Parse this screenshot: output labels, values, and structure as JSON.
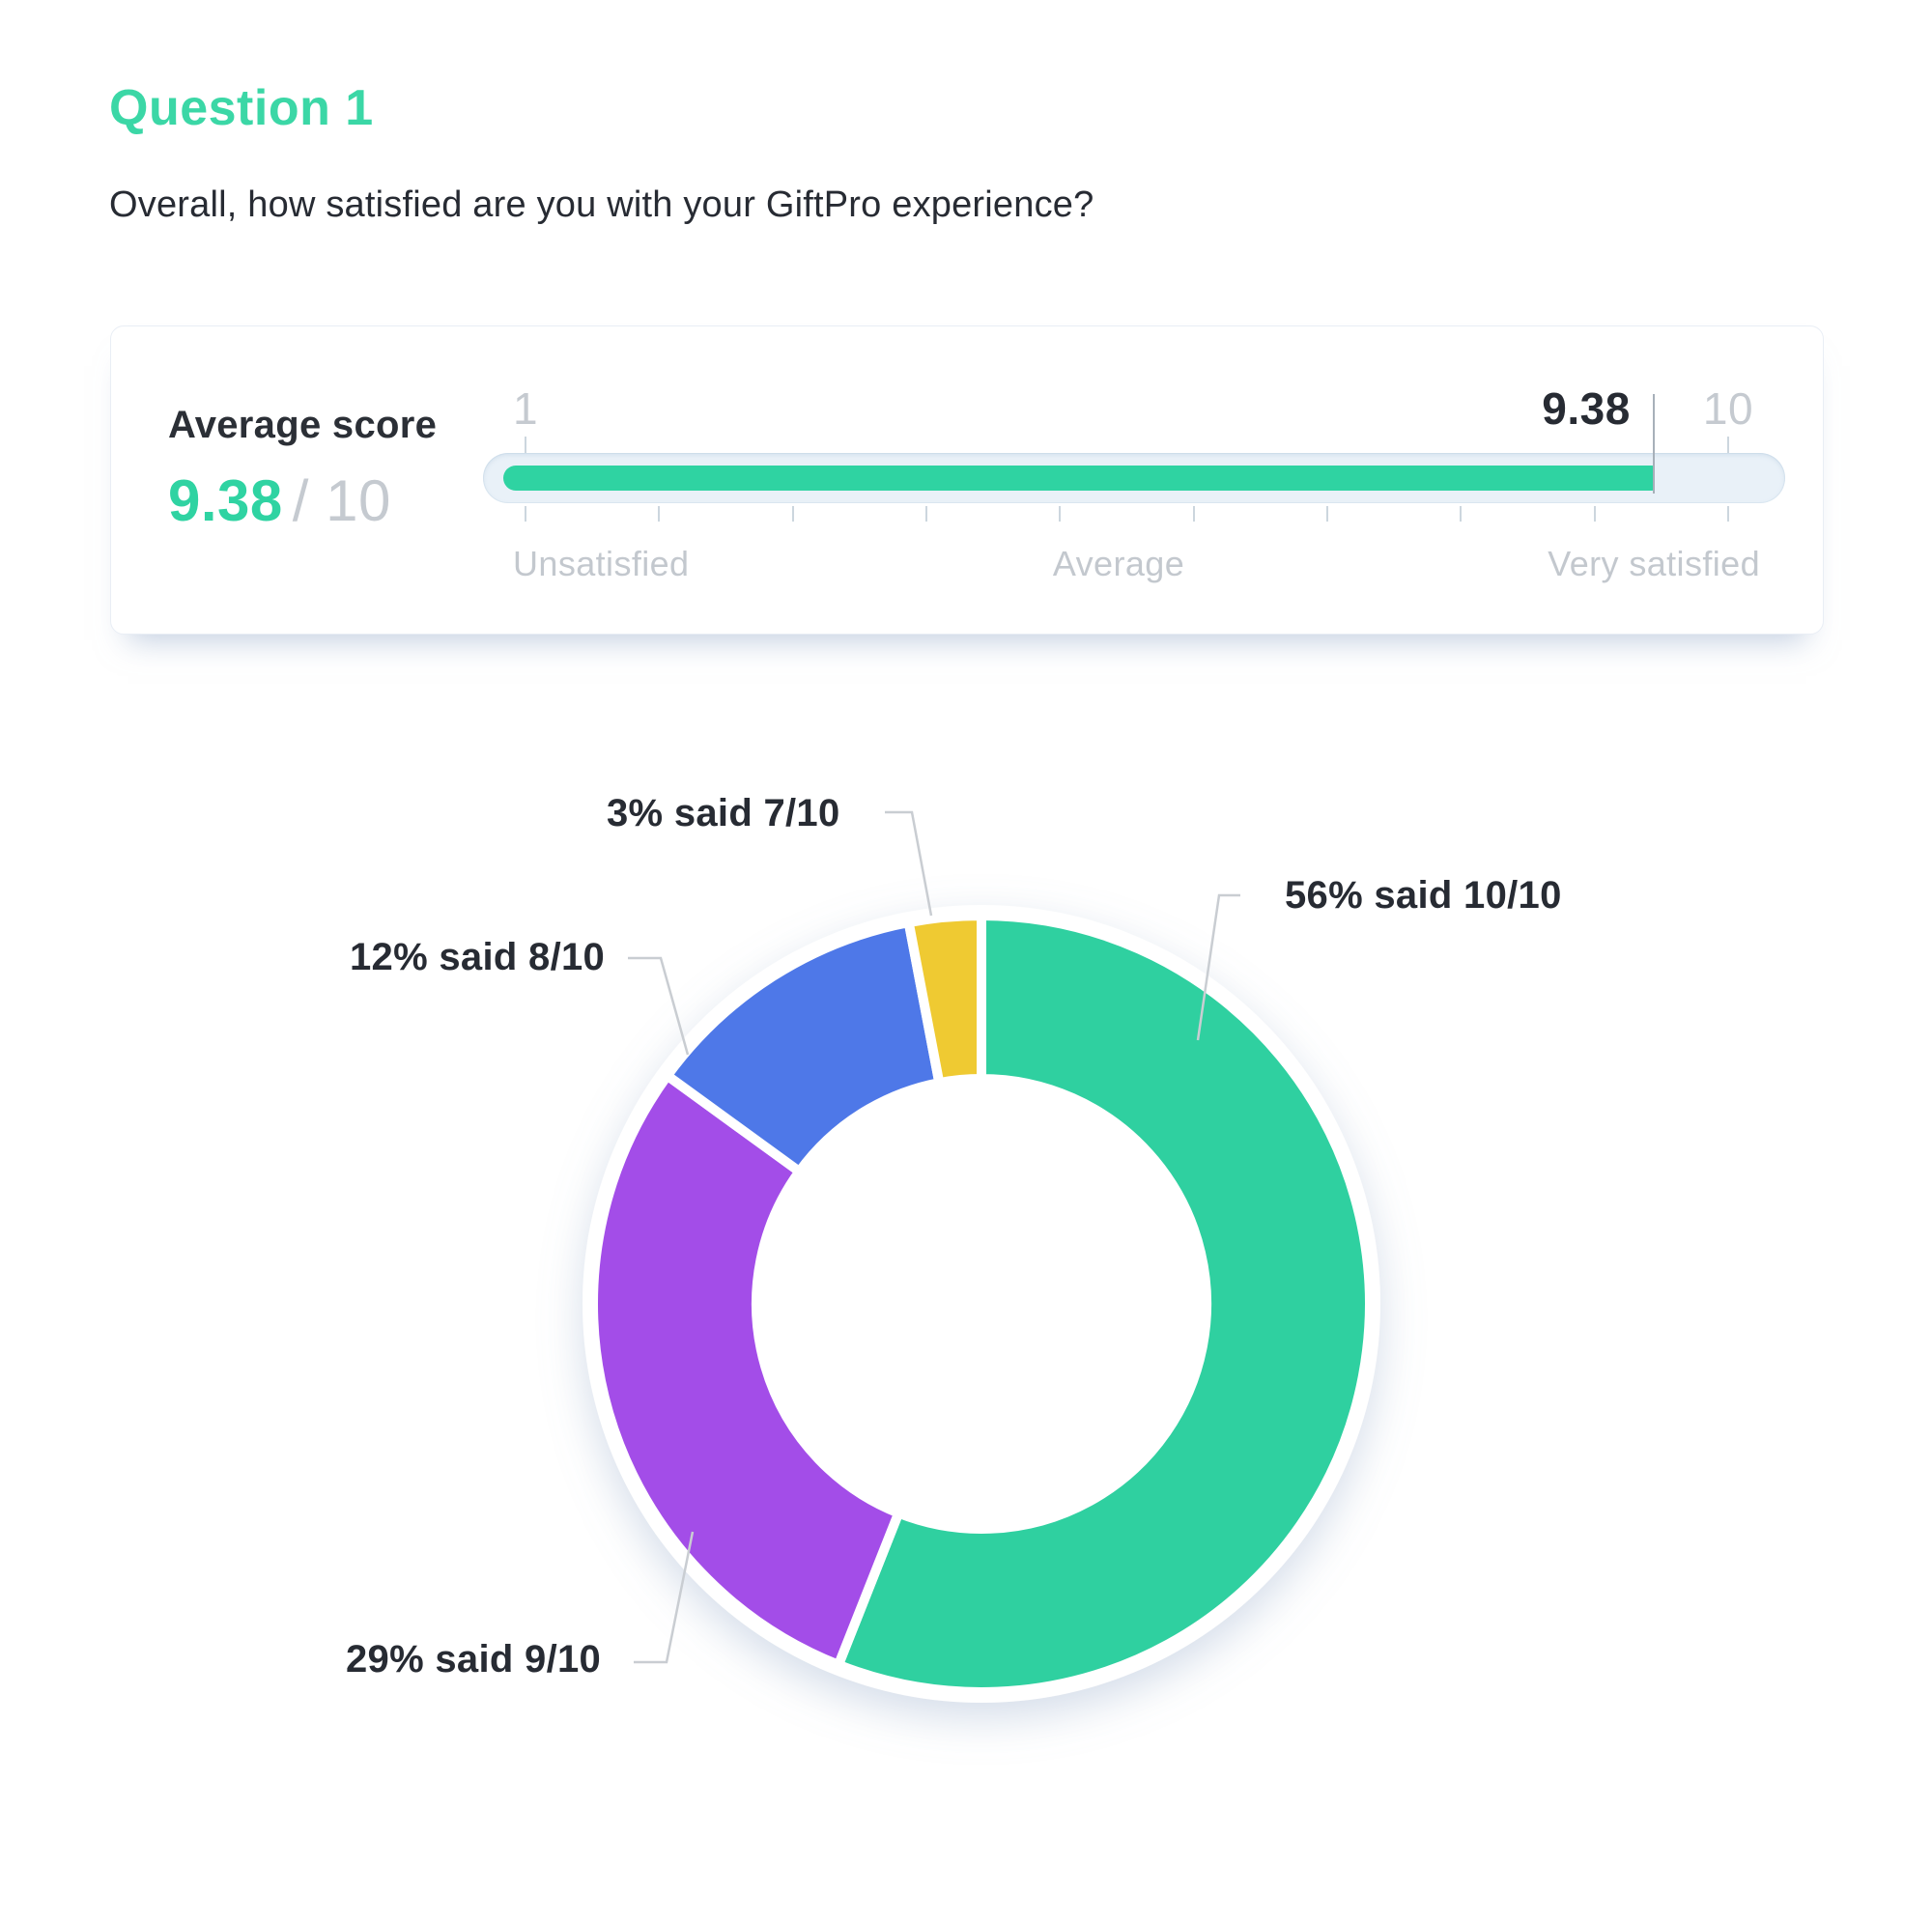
{
  "header": {
    "title": "Question 1",
    "question": "Overall, how satisfied are you with your GiftPro experience?"
  },
  "score_card": {
    "label": "Average score",
    "value": "9.38",
    "max_display": "/ 10"
  },
  "chart_data": [
    {
      "type": "gauge",
      "title": "Average score",
      "value": 9.38,
      "min": 1,
      "max": 10,
      "value_display": "9.38",
      "min_label": "1",
      "max_label": "10",
      "tick_count": 10,
      "axis_labels": [
        "Unsatisfied",
        "Average",
        "Very satisfied"
      ],
      "track_color": "#e9f1f8",
      "fill_color": "#2fd3a2"
    },
    {
      "type": "pie",
      "donut": true,
      "direction": "clockwise",
      "start_angle_deg": 0,
      "legend_position": "callout-labels",
      "segments": [
        {
          "label": "56% said 10/10",
          "percent": 56,
          "score": "10/10",
          "color": "#2fd0a0"
        },
        {
          "label": "29% said 9/10",
          "percent": 29,
          "score": "9/10",
          "color": "#a34de8"
        },
        {
          "label": "12% said 8/10",
          "percent": 12,
          "score": "8/10",
          "color": "#4e78e8"
        },
        {
          "label": "3% said 7/10",
          "percent": 3,
          "score": "7/10",
          "color": "#efca32"
        }
      ]
    }
  ],
  "colors": {
    "accent_green": "#2fd3a2",
    "heading_green": "#3bd7a6",
    "dark_text": "#272b33",
    "muted_text": "#c5cad0",
    "track": "#e9f1f8",
    "leader_line": "#c9cdd2"
  }
}
